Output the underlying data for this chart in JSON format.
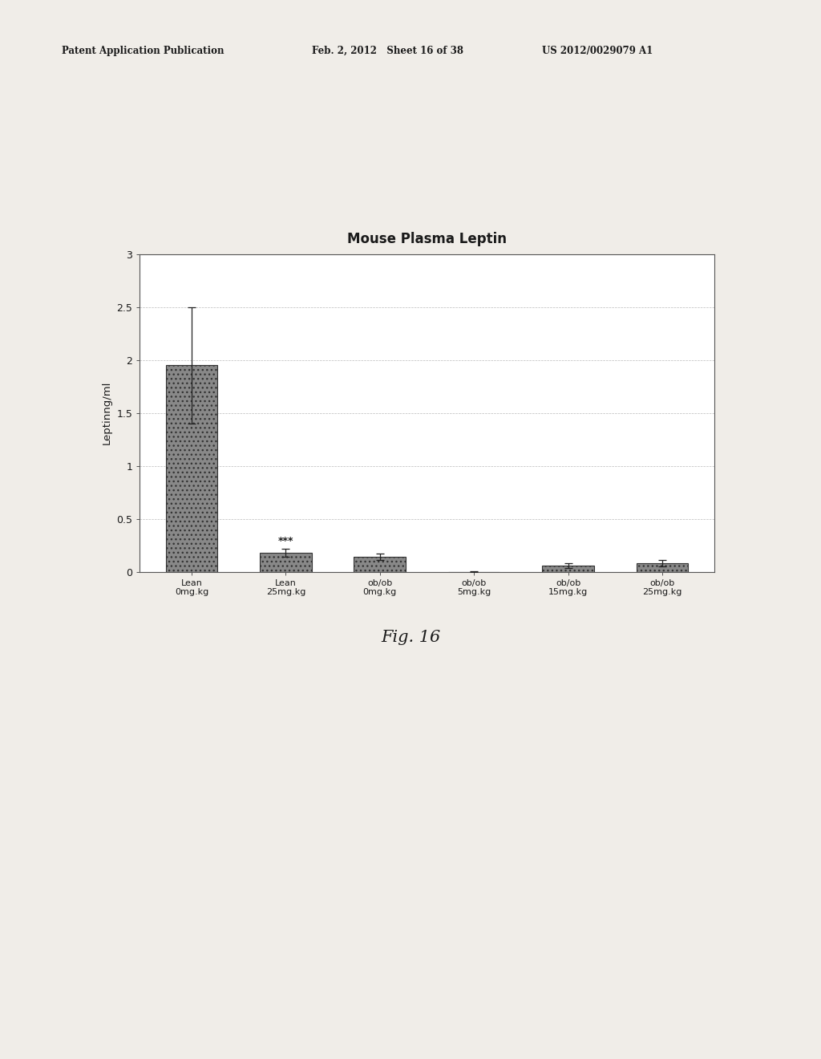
{
  "title": "Mouse Plasma Leptin",
  "ylabel": "Leptinng/ml",
  "categories": [
    "Lean\n0mg.kg",
    "Lean\n25mg.kg",
    "ob/ob\n0mg.kg",
    "ob/ob\n5mg.kg",
    "ob/ob\n15mg.kg",
    "ob/ob\n25mg.kg"
  ],
  "values": [
    1.95,
    0.18,
    0.14,
    0.0,
    0.06,
    0.08
  ],
  "errors": [
    0.55,
    0.04,
    0.03,
    0.005,
    0.02,
    0.03
  ],
  "ylim": [
    0,
    3.0
  ],
  "yticks": [
    0,
    0.5,
    1,
    1.5,
    2,
    2.5,
    3
  ],
  "bar_color": "#888888",
  "bar_edge_color": "#333333",
  "significance_label": "***",
  "significance_bar_index": 1,
  "fig_label": "Fig. 16",
  "header_left": "Patent Application Publication",
  "header_mid": "Feb. 2, 2012   Sheet 16 of 38",
  "header_right": "US 2012/0029079 A1",
  "background_color": "#ffffff",
  "page_color": "#f0ede8"
}
